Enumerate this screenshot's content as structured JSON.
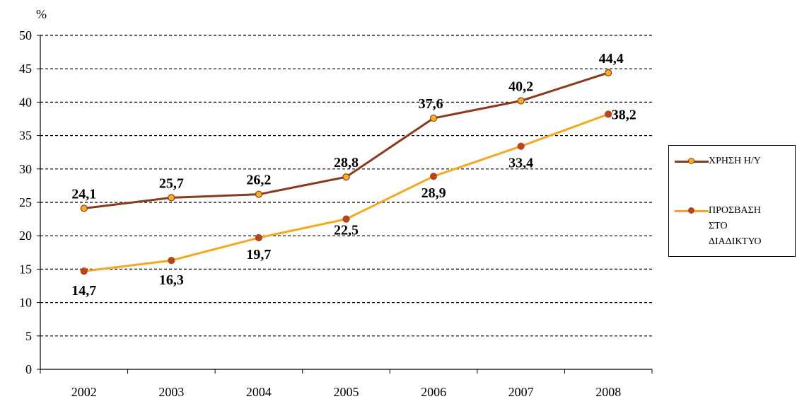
{
  "chart_data": {
    "type": "line",
    "ylabel": "%",
    "categories": [
      "2002",
      "2003",
      "2004",
      "2005",
      "2006",
      "2007",
      "2008"
    ],
    "ylim": [
      0,
      50
    ],
    "yticks": [
      0,
      5,
      10,
      15,
      20,
      25,
      30,
      35,
      40,
      45,
      50
    ],
    "grid": "horizontal dashed",
    "legend_position": "right",
    "series": [
      {
        "name": "ΧΡΗΣΗ Η/Υ",
        "color": "#8B3A1A",
        "marker_color": "#F5B21B",
        "values": [
          24.1,
          25.7,
          26.2,
          28.8,
          37.6,
          40.2,
          44.4
        ],
        "labels": [
          "24,1",
          "25,7",
          "26,2",
          "28,8",
          "37,6",
          "40,2",
          "44,4"
        ]
      },
      {
        "name": "ΠΡΟΣΒΑΣΗ ΣΤΟ ΔΙΑΔΙΚΤΥΟ",
        "color": "#F5A623",
        "marker_color": "#B5451B",
        "values": [
          14.7,
          16.3,
          19.7,
          22.5,
          28.9,
          33.4,
          38.2
        ],
        "labels": [
          "14,7",
          "16,3",
          "19,7",
          "22,5",
          "28,9",
          "33,4",
          "38,2"
        ]
      }
    ]
  },
  "legend": {
    "item1": {
      "label": "ΧΡΗΣΗ Η/Υ"
    },
    "item2": {
      "line1": "ΠΡΟΣΒΑΣΗ",
      "line2": "ΣΤΟ",
      "line3": "ΔΙΑΔΙΚΤΥΟ"
    }
  }
}
